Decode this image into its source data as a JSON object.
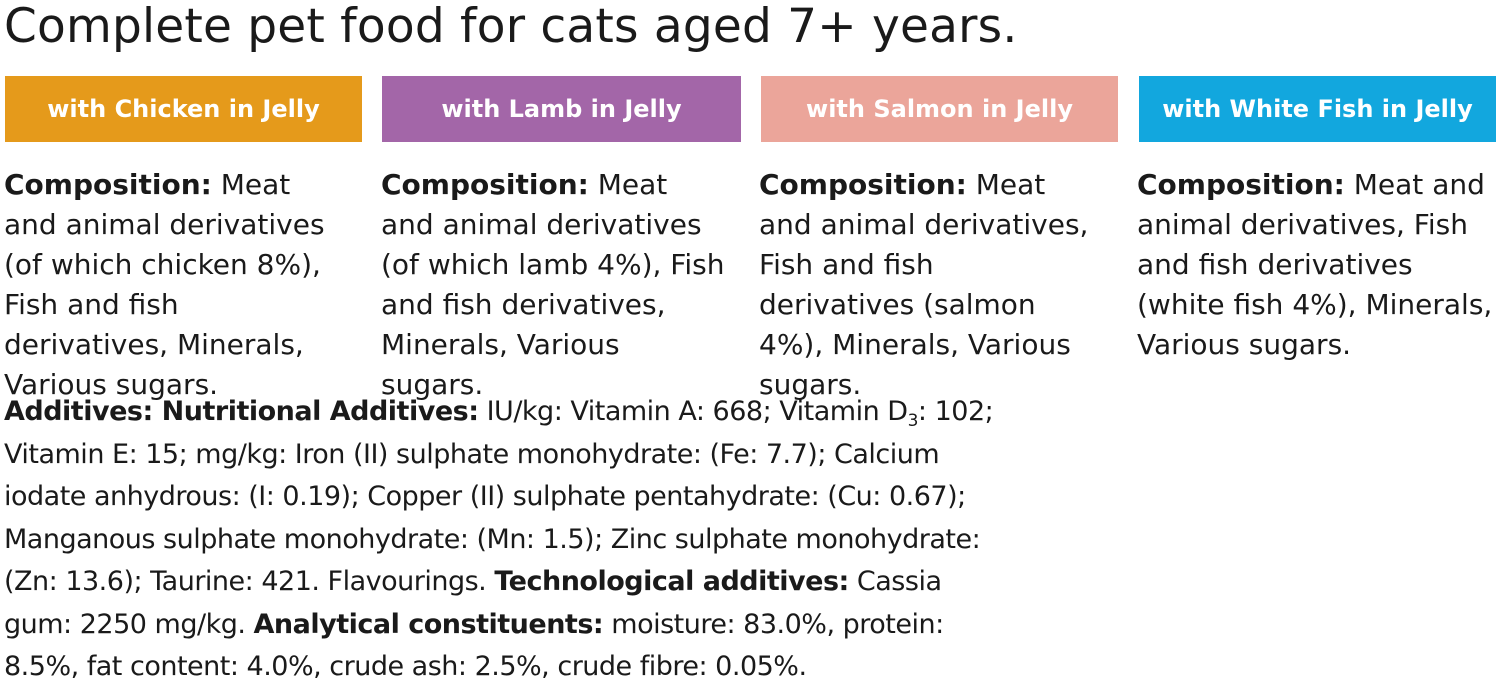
{
  "title": "Complete pet food for cats aged 7+ years.",
  "variants": [
    {
      "label": "with Chicken in Jelly",
      "color": "#e59a1b",
      "composition_heading": "Composition:",
      "composition_text": "Meat and animal derivatives (of which chicken 8%), Fish and fish derivatives, Minerals, Various sugars."
    },
    {
      "label": "with Lamb in Jelly",
      "color": "#a366a8",
      "composition_heading": "Composition:",
      "composition_text": "Meat and animal derivatives (of which lamb 4%), Fish and fish derivatives, Minerals, Various sugars."
    },
    {
      "label": "with Salmon in Jelly",
      "color": "#eba59a",
      "composition_heading": "Composition:",
      "composition_text": "Meat and animal derivatives, Fish and fish derivatives (salmon 4%), Minerals, Various sugars."
    },
    {
      "label": "with White Fish in Jelly",
      "color": "#12a7de",
      "composition_heading": "Composition:",
      "composition_text": "Meat and animal derivatives, Fish and fish derivatives (white fish 4%), Minerals, Various sugars."
    }
  ],
  "additives": {
    "heading_1": "Additives: Nutritional Additives:",
    "text_1": "IU/kg: Vitamin A: 668; Vitamin D",
    "subscript": "3",
    "text_2": ": 102; Vitamin E: 15; mg/kg: Iron (II) sulphate monohydrate: (Fe: 7.7); Calcium iodate anhydrous: (I: 0.19); Copper (II) sulphate pentahydrate: (Cu: 0.67); Manganous sulphate monohydrate: (Mn: 1.5); Zinc sulphate monohydrate: (Zn: 13.6); Taurine: 421. Flavourings.",
    "heading_2": "Technological additives:",
    "text_3": "Cassia gum: 2250 mg/kg.",
    "heading_3": "Analytical constituents:",
    "text_4": "moisture: 83.0%, protein: 8.5%, fat content: 4.0%, crude ash: 2.5%, crude fibre: 0.05%."
  }
}
